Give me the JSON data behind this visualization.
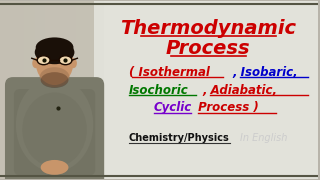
{
  "bg_color_left": "#c8c4b8",
  "bg_color_right": "#e8e8e0",
  "title_line1": "Thermodynamic",
  "title_line2": "Process",
  "title_color": "#cc0000",
  "title_underline_color": "#cc0000",
  "sub_line1": [
    {
      "text": "( Isothermal",
      "color": "#cc0000",
      "ul": true,
      "ul_color": "#cc0000"
    },
    {
      "text": ", Isobaric,",
      "color": "#0000dd",
      "ul": true,
      "ul_color": "#0000dd"
    }
  ],
  "sub_line2": [
    {
      "text": "Isochoric",
      "color": "#007700",
      "ul": true,
      "ul_color": "#007700"
    },
    {
      "text": ", Adiabatic,",
      "color": "#cc0000",
      "ul": true,
      "ul_color": "#cc0000"
    }
  ],
  "sub_line3": [
    {
      "text": "Cyclic",
      "color": "#7700cc",
      "ul": true,
      "ul_color": "#7700cc"
    },
    {
      "text": " Process )",
      "color": "#cc0000",
      "ul": true,
      "ul_color": "#cc0000"
    }
  ],
  "bottom_left_text": "Chemistry/Physics",
  "bottom_left_color": "#111111",
  "bottom_right_text": "In English",
  "bottom_right_color": "#cccccc",
  "person_skin": "#c8956a",
  "person_hair": "#1a1008",
  "person_shirt": "#7a7a6a",
  "person_shirt_dark": "#6a6a5a"
}
